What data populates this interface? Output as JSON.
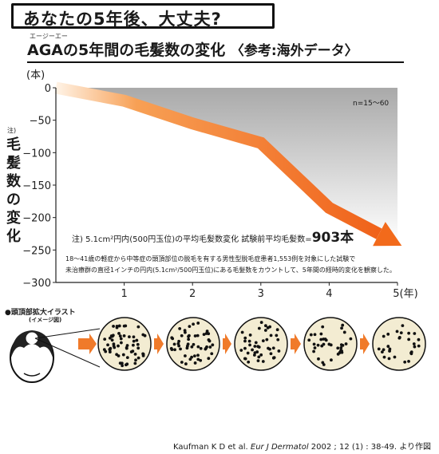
{
  "header": {
    "banner": "あなたの5年後、大丈夫?",
    "ruby": "エージーエー",
    "title_main": "AGAの5年間の毛髪数の変化",
    "title_bracket": "〈参考:海外データ〉"
  },
  "chart_data": {
    "type": "area",
    "unit_label": "(本)",
    "ylabel_note": "注)",
    "ylabel": "毛髪数の変化",
    "x_ticks": [
      "1",
      "2",
      "3",
      "4",
      "5(年)"
    ],
    "y_ticks": [
      "0",
      "−50",
      "−100",
      "−150",
      "−200",
      "−250",
      "−300"
    ],
    "x": [
      0,
      1,
      2,
      3,
      4,
      5
    ],
    "values": [
      0,
      -20,
      -55,
      -85,
      -185,
      -240
    ],
    "xlim": [
      0,
      5
    ],
    "ylim": [
      -300,
      0
    ],
    "n_label": "n=15〜60",
    "line_color": "#f26a1b",
    "fill_color": "#c8c8c8",
    "note1_prefix": "注) 5.1cm²円内(500円玉位)の平均毛髪数変化 試験前平均毛髪数=",
    "note1_value": "903本",
    "note2_line1": "18〜41歳の軽症から中等症の頭頂部位の脱毛を有する男性型脱毛症患者1,553例を対象にした試験で",
    "note2_line2": "未治療群の直径1インチの円内(5.1cm²/500円玉位)にある毛髪数をカウントして、5年間の経時的変化を観察した。"
  },
  "illustration": {
    "label": "●頭頂部拡大イラスト",
    "sublabel": "(イメージ図)",
    "circle_count": 5,
    "dot_counts": [
      60,
      52,
      44,
      36,
      28
    ],
    "circle_fill": "#f3ecd2",
    "arrow_color": "#f07a2a"
  },
  "citation": {
    "prefix": "Kaufman K D et al. ",
    "journal": "Eur J Dermatol",
    "suffix": " 2002 ; 12 (1) : 38-49. より作図"
  }
}
